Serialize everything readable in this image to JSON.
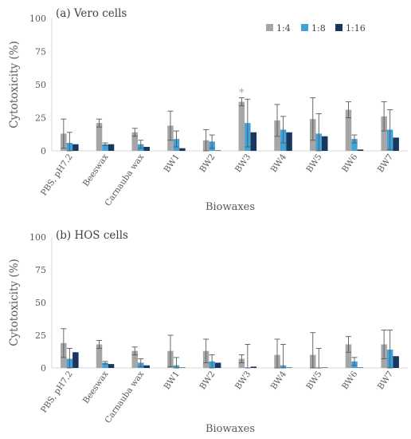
{
  "chart_data": [
    {
      "type": "bar",
      "title": "(a) Vero cells",
      "xlabel": "Biowaxes",
      "ylabel": "Cytotoxicity (%)",
      "ylim": [
        0,
        100
      ],
      "yticks": [
        0,
        25,
        50,
        75,
        100
      ],
      "categories": [
        "PBS, pH7.2",
        "Beeswax",
        "Carnauba wax",
        "BW1",
        "BW2",
        "BW3",
        "BW4",
        "BW5",
        "BW6",
        "BW7"
      ],
      "legend_position": "top-right",
      "series": [
        {
          "name": "1:4",
          "color": "#a6a6a6",
          "values": [
            13,
            21,
            14,
            19,
            8,
            37,
            23,
            24,
            31,
            26
          ],
          "errors": [
            11,
            3,
            3,
            11,
            8,
            3,
            12,
            16,
            6,
            11
          ]
        },
        {
          "name": "1:8",
          "color": "#3fa2d9",
          "values": [
            6,
            5,
            5,
            9,
            7,
            21,
            16,
            13,
            9,
            16
          ],
          "errors": [
            8,
            1,
            3,
            6,
            5,
            18,
            10,
            15,
            3,
            15
          ]
        },
        {
          "name": "1:16",
          "color": "#17375e",
          "values": [
            5,
            5,
            3,
            2,
            0,
            14,
            14,
            11,
            1,
            10
          ],
          "errors": [
            0,
            0,
            0,
            0,
            0,
            0,
            0,
            0,
            0,
            0
          ]
        }
      ],
      "annotations": [
        {
          "text": "*",
          "category": "BW3"
        }
      ]
    },
    {
      "type": "bar",
      "title": "(b) HOS cells",
      "xlabel": "Biowaxes",
      "ylabel": "Cytotoxicity (%)",
      "ylim": [
        0,
        100
      ],
      "yticks": [
        0,
        25,
        50,
        75,
        100
      ],
      "categories": [
        "PBS, pH7.2",
        "Beeswax",
        "Carnauba wax",
        "BW1",
        "BW2",
        "BW3",
        "BW4",
        "BW5",
        "BW6",
        "BW7"
      ],
      "series": [
        {
          "name": "1:4",
          "color": "#a6a6a6",
          "values": [
            19,
            18,
            13,
            13,
            13,
            7,
            10,
            10,
            18,
            18
          ],
          "errors": [
            11,
            3,
            3,
            12,
            9,
            3,
            12,
            17,
            6,
            11
          ]
        },
        {
          "name": "1:8",
          "color": "#3fa2d9",
          "values": [
            7,
            4,
            4,
            2,
            5,
            0,
            2,
            0,
            5,
            14
          ],
          "errors": [
            8,
            1,
            3,
            6,
            5,
            18,
            16,
            15,
            3,
            15
          ]
        },
        {
          "name": "1:16",
          "color": "#17375e",
          "values": [
            12,
            3,
            2,
            0,
            4,
            1,
            0,
            0,
            0,
            9
          ],
          "errors": [
            0,
            0,
            0,
            0,
            0,
            0,
            0,
            0,
            0,
            0
          ]
        }
      ]
    }
  ]
}
